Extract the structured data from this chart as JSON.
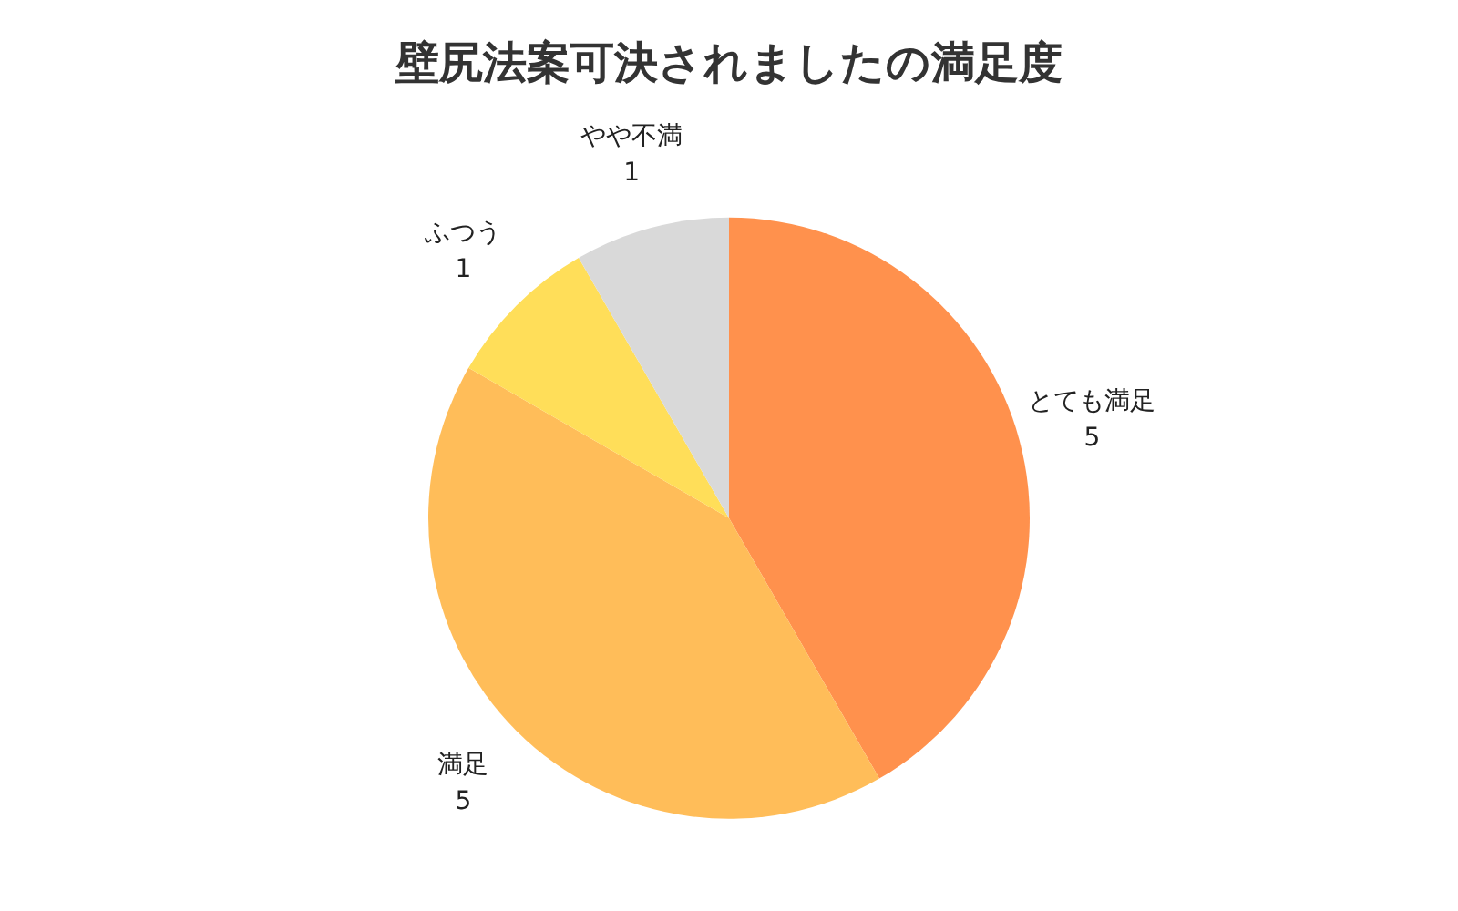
{
  "chart_data": {
    "type": "pie",
    "title": "壁尻法案可決されましたの満足度",
    "categories": [
      "とても満足",
      "満足",
      "ふつう",
      "やや不満"
    ],
    "values": [
      5,
      5,
      1,
      1
    ],
    "colors": [
      "#ff914d",
      "#ffbd59",
      "#ffde59",
      "#d9d9d9"
    ],
    "data_labels": true,
    "legend": false
  }
}
